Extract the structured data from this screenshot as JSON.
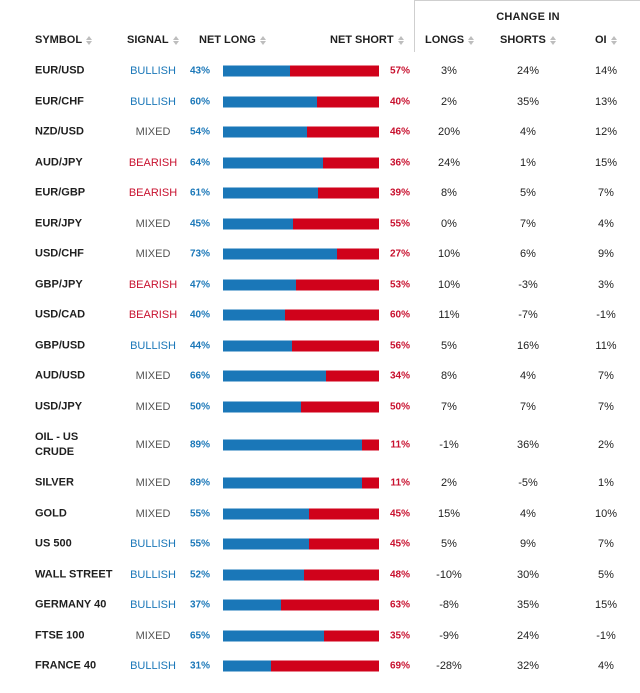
{
  "change_in_label": "CHANGE IN",
  "headers": {
    "symbol": "SYMBOL",
    "signal": "SIGNAL",
    "net_long": "NET LONG",
    "net_short": "NET SHORT",
    "longs": "LONGS",
    "shorts": "SHORTS",
    "oi": "OI"
  },
  "colors": {
    "long": "#1a77b8",
    "short": "#d0021b",
    "bullish": "#1a77b8",
    "bearish": "#c8102e",
    "mixed": "#555555"
  },
  "rows": [
    {
      "symbol": "EUR/USD",
      "signal": "BULLISH",
      "net_long": "43%",
      "net_short": "57%",
      "long_pct": 43,
      "longs": "3%",
      "shorts": "24%",
      "oi": "14%"
    },
    {
      "symbol": "EUR/CHF",
      "signal": "BULLISH",
      "net_long": "60%",
      "net_short": "40%",
      "long_pct": 60,
      "longs": "2%",
      "shorts": "35%",
      "oi": "13%"
    },
    {
      "symbol": "NZD/USD",
      "signal": "MIXED",
      "net_long": "54%",
      "net_short": "46%",
      "long_pct": 54,
      "longs": "20%",
      "shorts": "4%",
      "oi": "12%"
    },
    {
      "symbol": "AUD/JPY",
      "signal": "BEARISH",
      "net_long": "64%",
      "net_short": "36%",
      "long_pct": 64,
      "longs": "24%",
      "shorts": "1%",
      "oi": "15%"
    },
    {
      "symbol": "EUR/GBP",
      "signal": "BEARISH",
      "net_long": "61%",
      "net_short": "39%",
      "long_pct": 61,
      "longs": "8%",
      "shorts": "5%",
      "oi": "7%"
    },
    {
      "symbol": "EUR/JPY",
      "signal": "MIXED",
      "net_long": "45%",
      "net_short": "55%",
      "long_pct": 45,
      "longs": "0%",
      "shorts": "7%",
      "oi": "4%"
    },
    {
      "symbol": "USD/CHF",
      "signal": "MIXED",
      "net_long": "73%",
      "net_short": "27%",
      "long_pct": 73,
      "longs": "10%",
      "shorts": "6%",
      "oi": "9%"
    },
    {
      "symbol": "GBP/JPY",
      "signal": "BEARISH",
      "net_long": "47%",
      "net_short": "53%",
      "long_pct": 47,
      "longs": "10%",
      "shorts": "-3%",
      "oi": "3%"
    },
    {
      "symbol": "USD/CAD",
      "signal": "BEARISH",
      "net_long": "40%",
      "net_short": "60%",
      "long_pct": 40,
      "longs": "11%",
      "shorts": "-7%",
      "oi": "-1%"
    },
    {
      "symbol": "GBP/USD",
      "signal": "BULLISH",
      "net_long": "44%",
      "net_short": "56%",
      "long_pct": 44,
      "longs": "5%",
      "shorts": "16%",
      "oi": "11%"
    },
    {
      "symbol": "AUD/USD",
      "signal": "MIXED",
      "net_long": "66%",
      "net_short": "34%",
      "long_pct": 66,
      "longs": "8%",
      "shorts": "4%",
      "oi": "7%"
    },
    {
      "symbol": "USD/JPY",
      "signal": "MIXED",
      "net_long": "50%",
      "net_short": "50%",
      "long_pct": 50,
      "longs": "7%",
      "shorts": "7%",
      "oi": "7%"
    },
    {
      "symbol": "OIL - US CRUDE",
      "signal": "MIXED",
      "net_long": "89%",
      "net_short": "11%",
      "long_pct": 89,
      "longs": "-1%",
      "shorts": "36%",
      "oi": "2%"
    },
    {
      "symbol": "SILVER",
      "signal": "MIXED",
      "net_long": "89%",
      "net_short": "11%",
      "long_pct": 89,
      "longs": "2%",
      "shorts": "-5%",
      "oi": "1%"
    },
    {
      "symbol": "GOLD",
      "signal": "MIXED",
      "net_long": "55%",
      "net_short": "45%",
      "long_pct": 55,
      "longs": "15%",
      "shorts": "4%",
      "oi": "10%"
    },
    {
      "symbol": "US 500",
      "signal": "BULLISH",
      "net_long": "55%",
      "net_short": "45%",
      "long_pct": 55,
      "longs": "5%",
      "shorts": "9%",
      "oi": "7%"
    },
    {
      "symbol": "WALL STREET",
      "signal": "BULLISH",
      "net_long": "52%",
      "net_short": "48%",
      "long_pct": 52,
      "longs": "-10%",
      "shorts": "30%",
      "oi": "5%"
    },
    {
      "symbol": "GERMANY 40",
      "signal": "BULLISH",
      "net_long": "37%",
      "net_short": "63%",
      "long_pct": 37,
      "longs": "-8%",
      "shorts": "35%",
      "oi": "15%"
    },
    {
      "symbol": "FTSE 100",
      "signal": "MIXED",
      "net_long": "65%",
      "net_short": "35%",
      "long_pct": 65,
      "longs": "-9%",
      "shorts": "24%",
      "oi": "-1%"
    },
    {
      "symbol": "FRANCE 40",
      "signal": "BULLISH",
      "net_long": "31%",
      "net_short": "69%",
      "long_pct": 31,
      "longs": "-28%",
      "shorts": "32%",
      "oi": "4%"
    }
  ]
}
